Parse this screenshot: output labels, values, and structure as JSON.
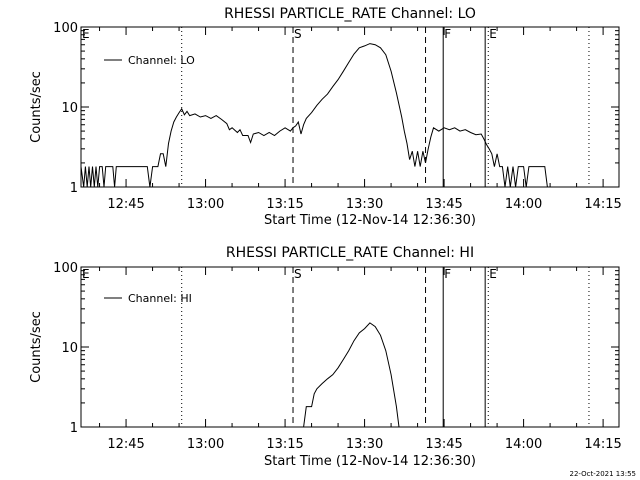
{
  "footer": {
    "timestamp": "22-Oct-2021 13:55"
  },
  "chart_data": [
    {
      "type": "line",
      "title": "RHESSI PARTICLE_RATE Channel: LO",
      "xlabel": "Start Time (12-Nov-14 12:36:30)",
      "ylabel": "Counts/sec",
      "y_scale": "log",
      "ylim": [
        1,
        100
      ],
      "y_ticks": [
        "1",
        "10",
        "100"
      ],
      "xlim": [
        "12:36:30",
        "14:18"
      ],
      "x_ticks": [
        "12:45",
        "13:00",
        "13:15",
        "13:30",
        "13:45",
        "14:00",
        "14:15"
      ],
      "legend": {
        "entry": "Channel: LO",
        "placement": "top-left"
      },
      "markers": [
        {
          "label": "E",
          "time": "12:36:30",
          "style": "none"
        },
        {
          "label": "",
          "time": "12:55:30",
          "style": "dotted"
        },
        {
          "label": "S",
          "time": "13:16:30",
          "style": "dashed"
        },
        {
          "label": "",
          "time": "13:41:30",
          "style": "dashed"
        },
        {
          "label": "F",
          "time": "13:44:50",
          "style": "solid"
        },
        {
          "label": "",
          "time": "13:52:45",
          "style": "solid"
        },
        {
          "label": "E",
          "time": "13:53:20",
          "style": "dotted"
        },
        {
          "label": "",
          "time": "14:12:20",
          "style": "dotted"
        }
      ],
      "series": [
        {
          "name": "Channel: LO",
          "points": [
            [
              "12:36:30",
              1.8
            ],
            [
              "12:37:00",
              1
            ],
            [
              "12:37:20",
              1.8
            ],
            [
              "12:37:40",
              1
            ],
            [
              "12:38:00",
              1.8
            ],
            [
              "12:38:20",
              1
            ],
            [
              "12:38:40",
              1.8
            ],
            [
              "12:39:00",
              1
            ],
            [
              "12:39:20",
              1.8
            ],
            [
              "12:39:40",
              1
            ],
            [
              "12:40:00",
              1.8
            ],
            [
              "12:40:30",
              1.8
            ],
            [
              "12:40:50",
              1
            ],
            [
              "12:41:10",
              1.8
            ],
            [
              "12:42:00",
              1.8
            ],
            [
              "12:42:30",
              1.8
            ],
            [
              "12:42:50",
              1
            ],
            [
              "12:43:10",
              1.8
            ],
            [
              "12:44:00",
              1.8
            ],
            [
              "12:45:00",
              1.8
            ],
            [
              "12:46:00",
              1.8
            ],
            [
              "12:47:00",
              1.8
            ],
            [
              "12:48:00",
              1.8
            ],
            [
              "12:49:00",
              1.8
            ],
            [
              "12:49:30",
              1
            ],
            [
              "12:50:00",
              1.8
            ],
            [
              "12:51:00",
              1.8
            ],
            [
              "12:51:30",
              2.6
            ],
            [
              "12:52:00",
              2.6
            ],
            [
              "12:52:30",
              1.8
            ],
            [
              "12:53:00",
              3.5
            ],
            [
              "12:53:30",
              5.0
            ],
            [
              "12:54:00",
              6.5
            ],
            [
              "12:54:30",
              7.5
            ],
            [
              "12:55:00",
              8.5
            ],
            [
              "12:55:30",
              9.5
            ],
            [
              "12:56:00",
              8.0
            ],
            [
              "12:56:30",
              8.8
            ],
            [
              "12:57:00",
              7.8
            ],
            [
              "12:58:00",
              8.2
            ],
            [
              "12:59:00",
              7.5
            ],
            [
              "13:00:00",
              7.8
            ],
            [
              "13:01:00",
              7.2
            ],
            [
              "13:02:00",
              7.8
            ],
            [
              "13:03:00",
              7.0
            ],
            [
              "13:04:00",
              6.2
            ],
            [
              "13:04:30",
              5.2
            ],
            [
              "13:05:00",
              5.5
            ],
            [
              "13:06:00",
              4.8
            ],
            [
              "13:06:30",
              5.2
            ],
            [
              "13:07:00",
              4.4
            ],
            [
              "13:08:00",
              4.4
            ],
            [
              "13:08:30",
              3.6
            ],
            [
              "13:09:00",
              4.6
            ],
            [
              "13:10:00",
              4.8
            ],
            [
              "13:11:00",
              4.4
            ],
            [
              "13:12:00",
              4.8
            ],
            [
              "13:13:00",
              4.4
            ],
            [
              "13:14:00",
              5.0
            ],
            [
              "13:15:00",
              5.5
            ],
            [
              "13:16:00",
              5.0
            ],
            [
              "13:16:30",
              5.5
            ],
            [
              "13:17:00",
              5.8
            ],
            [
              "13:17:30",
              6.5
            ],
            [
              "13:18:00",
              4.6
            ],
            [
              "13:18:30",
              6.0
            ],
            [
              "13:19:00",
              7.2
            ],
            [
              "13:20:00",
              8.5
            ],
            [
              "13:21:00",
              10.5
            ],
            [
              "13:22:00",
              12.5
            ],
            [
              "13:23:00",
              14.5
            ],
            [
              "13:24:00",
              18.0
            ],
            [
              "13:25:00",
              22.0
            ],
            [
              "13:26:00",
              28.0
            ],
            [
              "13:27:00",
              36.0
            ],
            [
              "13:28:00",
              46.0
            ],
            [
              "13:29:00",
              55.0
            ],
            [
              "13:30:00",
              58.0
            ],
            [
              "13:31:00",
              62.0
            ],
            [
              "13:32:00",
              60.0
            ],
            [
              "13:33:00",
              55.0
            ],
            [
              "13:34:00",
              45.0
            ],
            [
              "13:35:00",
              28.0
            ],
            [
              "13:36:00",
              15.0
            ],
            [
              "13:37:00",
              7.5
            ],
            [
              "13:37:30",
              5.0
            ],
            [
              "13:38:00",
              3.5
            ],
            [
              "13:38:30",
              2.2
            ],
            [
              "13:39:00",
              2.8
            ],
            [
              "13:39:30",
              1.8
            ],
            [
              "13:40:00",
              2.8
            ],
            [
              "13:40:30",
              1.8
            ],
            [
              "13:41:00",
              2.8
            ],
            [
              "13:41:30",
              2.0
            ],
            [
              "13:42:00",
              3.0
            ],
            [
              "13:42:30",
              4.2
            ],
            [
              "13:43:00",
              5.5
            ],
            [
              "13:44:00",
              5.0
            ],
            [
              "13:45:00",
              5.5
            ],
            [
              "13:46:00",
              5.2
            ],
            [
              "13:47:00",
              5.5
            ],
            [
              "13:48:00",
              5.0
            ],
            [
              "13:49:00",
              5.2
            ],
            [
              "13:50:00",
              4.8
            ],
            [
              "13:51:00",
              4.5
            ],
            [
              "13:52:00",
              4.6
            ],
            [
              "13:52:30",
              4.0
            ],
            [
              "13:53:00",
              3.4
            ],
            [
              "13:53:30",
              3.0
            ],
            [
              "13:54:00",
              2.6
            ],
            [
              "13:54:30",
              1.8
            ],
            [
              "13:55:00",
              2.6
            ],
            [
              "13:55:30",
              1.8
            ],
            [
              "13:56:00",
              1.8
            ],
            [
              "13:56:30",
              1
            ],
            [
              "13:57:00",
              1.8
            ],
            [
              "13:57:30",
              1
            ],
            [
              "13:58:00",
              1.8
            ],
            [
              "13:58:30",
              1
            ],
            [
              "13:59:00",
              1.8
            ],
            [
              "13:59:30",
              1.8
            ],
            [
              "14:00:00",
              1.8
            ],
            [
              "14:00:30",
              1
            ],
            [
              "14:01:00",
              1.8
            ],
            [
              "14:02:00",
              1.8
            ],
            [
              "14:03:00",
              1.8
            ],
            [
              "14:04:00",
              1.8
            ],
            [
              "14:04:30",
              1
            ]
          ]
        }
      ]
    },
    {
      "type": "line",
      "title": "RHESSI PARTICLE_RATE Channel: HI",
      "xlabel": "Start Time (12-Nov-14 12:36:30)",
      "ylabel": "Counts/sec",
      "y_scale": "log",
      "ylim": [
        1,
        100
      ],
      "y_ticks": [
        "1",
        "10",
        "100"
      ],
      "xlim": [
        "12:36:30",
        "14:18"
      ],
      "x_ticks": [
        "12:45",
        "13:00",
        "13:15",
        "13:30",
        "13:45",
        "14:00",
        "14:15"
      ],
      "legend": {
        "entry": "Channel: HI",
        "placement": "top-left"
      },
      "markers": [
        {
          "label": "E",
          "time": "12:36:30",
          "style": "none"
        },
        {
          "label": "",
          "time": "12:55:30",
          "style": "dotted"
        },
        {
          "label": "S",
          "time": "13:16:30",
          "style": "dashed"
        },
        {
          "label": "",
          "time": "13:41:30",
          "style": "dashed"
        },
        {
          "label": "F",
          "time": "13:44:50",
          "style": "solid"
        },
        {
          "label": "",
          "time": "13:52:45",
          "style": "solid"
        },
        {
          "label": "E",
          "time": "13:53:20",
          "style": "dotted"
        },
        {
          "label": "",
          "time": "14:12:20",
          "style": "dotted"
        }
      ],
      "series": [
        {
          "name": "Channel: HI",
          "points": [
            [
              "13:18:30",
              1
            ],
            [
              "13:19:00",
              1.8
            ],
            [
              "13:20:00",
              1.8
            ],
            [
              "13:20:30",
              2.6
            ],
            [
              "13:21:00",
              3.0
            ],
            [
              "13:22:00",
              3.5
            ],
            [
              "13:23:00",
              4.0
            ],
            [
              "13:24:00",
              4.5
            ],
            [
              "13:25:00",
              5.5
            ],
            [
              "13:26:00",
              7.0
            ],
            [
              "13:27:00",
              9.0
            ],
            [
              "13:28:00",
              12.0
            ],
            [
              "13:29:00",
              15.0
            ],
            [
              "13:30:00",
              17.0
            ],
            [
              "13:31:00",
              20.0
            ],
            [
              "13:32:00",
              18.0
            ],
            [
              "13:33:00",
              14.0
            ],
            [
              "13:34:00",
              9.0
            ],
            [
              "13:35:00",
              4.5
            ],
            [
              "13:36:00",
              1.8
            ],
            [
              "13:36:30",
              1
            ]
          ]
        }
      ]
    }
  ]
}
